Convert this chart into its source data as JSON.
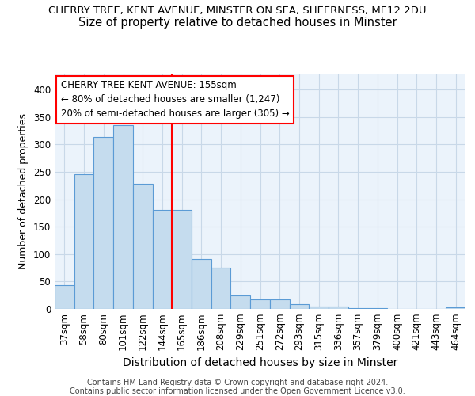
{
  "title1": "CHERRY TREE, KENT AVENUE, MINSTER ON SEA, SHEERNESS, ME12 2DU",
  "title2": "Size of property relative to detached houses in Minster",
  "xlabel": "Distribution of detached houses by size in Minster",
  "ylabel": "Number of detached properties",
  "categories": [
    "37sqm",
    "58sqm",
    "80sqm",
    "101sqm",
    "122sqm",
    "144sqm",
    "165sqm",
    "186sqm",
    "208sqm",
    "229sqm",
    "251sqm",
    "272sqm",
    "293sqm",
    "315sqm",
    "336sqm",
    "357sqm",
    "379sqm",
    "400sqm",
    "421sqm",
    "443sqm",
    "464sqm"
  ],
  "values": [
    43,
    245,
    313,
    335,
    228,
    180,
    180,
    91,
    75,
    25,
    17,
    17,
    9,
    5,
    5,
    2,
    2,
    0,
    0,
    0,
    3
  ],
  "bar_color": "#C5DCEE",
  "bar_edge_color": "#5B9BD5",
  "vline_x": 5.5,
  "annotation_text": "CHERRY TREE KENT AVENUE: 155sqm\n← 80% of detached houses are smaller (1,247)\n20% of semi-detached houses are larger (305) →",
  "annotation_box_color": "white",
  "annotation_box_edge": "red",
  "vline_color": "red",
  "ylim": [
    0,
    430
  ],
  "yticks": [
    0,
    50,
    100,
    150,
    200,
    250,
    300,
    350,
    400
  ],
  "grid_color": "#C8D8E8",
  "bg_color": "#EBF3FB",
  "footer1": "Contains HM Land Registry data © Crown copyright and database right 2024.",
  "footer2": "Contains public sector information licensed under the Open Government Licence v3.0.",
  "title1_fontsize": 9.5,
  "title2_fontsize": 10.5,
  "xlabel_fontsize": 10,
  "ylabel_fontsize": 9,
  "tick_fontsize": 8.5,
  "annotation_fontsize": 8.5,
  "footer_fontsize": 7
}
